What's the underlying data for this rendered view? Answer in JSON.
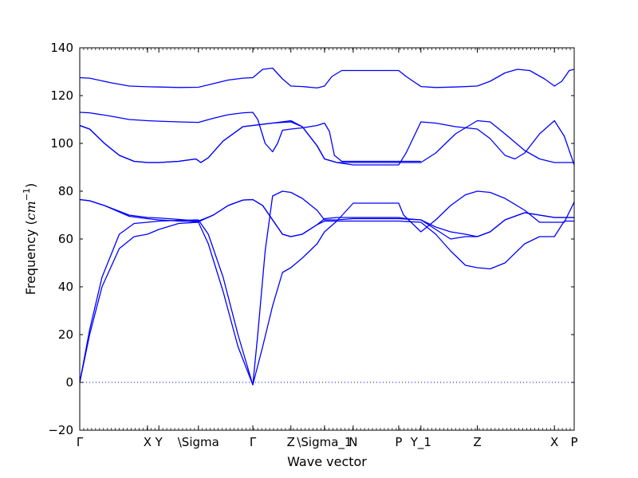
{
  "chart_data": {
    "type": "line",
    "xlabel": "Wave vector",
    "ylabel_text": "Frequency (",
    "ylabel_math_base": "cm",
    "ylabel_math_exp": "−1",
    "ylabel_close": ")",
    "ylim": [
      -20,
      140
    ],
    "yticks": [
      -20,
      0,
      20,
      40,
      60,
      80,
      100,
      120,
      140
    ],
    "xlim": [
      0,
      1
    ],
    "xticks": [
      {
        "label": "Γ",
        "x": 0.0
      },
      {
        "label": "X",
        "x": 0.137
      },
      {
        "label": "Y",
        "x": 0.16
      },
      {
        "label": "\\Sigma",
        "x": 0.24
      },
      {
        "label": "Γ",
        "x": 0.35
      },
      {
        "label": "Z",
        "x": 0.427
      },
      {
        "label": "\\Sigma_1",
        "x": 0.495
      },
      {
        "label": "N",
        "x": 0.553
      },
      {
        "label": "P",
        "x": 0.645
      },
      {
        "label": "Y_1",
        "x": 0.69
      },
      {
        "label": "Z",
        "x": 0.804
      },
      {
        "label": "X",
        "x": 0.96
      },
      {
        "label": "P",
        "x": 1.0
      }
    ],
    "zero_line": {
      "y": 0,
      "style": "dotted"
    },
    "series_color": "#0000ff",
    "series": [
      {
        "points": [
          [
            0,
            0
          ],
          [
            0.02,
            20
          ],
          [
            0.045,
            40
          ],
          [
            0.08,
            56
          ],
          [
            0.11,
            61
          ],
          [
            0.137,
            62
          ],
          [
            0.16,
            64
          ],
          [
            0.2,
            66.5
          ],
          [
            0.24,
            67
          ],
          [
            0.26,
            58
          ],
          [
            0.29,
            38
          ],
          [
            0.32,
            15
          ],
          [
            0.35,
            -1
          ],
          [
            0.37,
            15
          ],
          [
            0.39,
            32
          ],
          [
            0.41,
            46
          ],
          [
            0.427,
            48
          ],
          [
            0.45,
            52
          ],
          [
            0.48,
            58
          ],
          [
            0.495,
            63
          ],
          [
            0.52,
            67.5
          ],
          [
            0.553,
            67.5
          ],
          [
            0.6,
            67.5
          ],
          [
            0.645,
            67.5
          ],
          [
            0.69,
            67
          ],
          [
            0.72,
            62
          ],
          [
            0.75,
            55
          ],
          [
            0.78,
            49
          ],
          [
            0.804,
            48
          ],
          [
            0.83,
            47.5
          ],
          [
            0.86,
            50
          ],
          [
            0.9,
            58
          ],
          [
            0.93,
            61
          ],
          [
            0.96,
            61
          ],
          [
            0.98,
            67.5
          ],
          [
            1,
            67.5
          ]
        ]
      },
      {
        "points": [
          [
            0,
            0
          ],
          [
            0.02,
            22
          ],
          [
            0.045,
            44
          ],
          [
            0.08,
            62
          ],
          [
            0.11,
            66.5
          ],
          [
            0.137,
            67
          ],
          [
            0.16,
            67.5
          ],
          [
            0.2,
            67.8
          ],
          [
            0.24,
            68
          ],
          [
            0.26,
            62
          ],
          [
            0.29,
            44
          ],
          [
            0.32,
            20
          ],
          [
            0.35,
            -1
          ],
          [
            0.36,
            20
          ],
          [
            0.375,
            55
          ],
          [
            0.39,
            78
          ],
          [
            0.41,
            80
          ],
          [
            0.427,
            79.5
          ],
          [
            0.45,
            77
          ],
          [
            0.48,
            72
          ],
          [
            0.495,
            68
          ],
          [
            0.52,
            68
          ],
          [
            0.553,
            68.5
          ],
          [
            0.6,
            68.5
          ],
          [
            0.645,
            68.5
          ],
          [
            0.69,
            68
          ],
          [
            0.72,
            64
          ],
          [
            0.75,
            60
          ],
          [
            0.78,
            61
          ],
          [
            0.804,
            61
          ],
          [
            0.83,
            63
          ],
          [
            0.86,
            68
          ],
          [
            0.9,
            71
          ],
          [
            0.93,
            70
          ],
          [
            0.96,
            69
          ],
          [
            0.98,
            69
          ],
          [
            1,
            69
          ]
        ]
      },
      {
        "points": [
          [
            0,
            76.5
          ],
          [
            0.02,
            76
          ],
          [
            0.05,
            74
          ],
          [
            0.1,
            70
          ],
          [
            0.137,
            69
          ],
          [
            0.16,
            68.8
          ],
          [
            0.2,
            68.2
          ],
          [
            0.24,
            67.5
          ],
          [
            0.27,
            70
          ],
          [
            0.3,
            74
          ],
          [
            0.33,
            76.3
          ],
          [
            0.35,
            76.5
          ],
          [
            0.37,
            74
          ],
          [
            0.39,
            68
          ],
          [
            0.41,
            62
          ],
          [
            0.427,
            61
          ],
          [
            0.45,
            62
          ],
          [
            0.48,
            66
          ],
          [
            0.495,
            68.5
          ],
          [
            0.52,
            69
          ],
          [
            0.553,
            69
          ],
          [
            0.6,
            69
          ],
          [
            0.645,
            69
          ],
          [
            0.66,
            68.5
          ],
          [
            0.69,
            68
          ],
          [
            0.72,
            65
          ],
          [
            0.75,
            63
          ],
          [
            0.78,
            62
          ],
          [
            0.804,
            61
          ],
          [
            0.83,
            63
          ],
          [
            0.86,
            68
          ],
          [
            0.9,
            71
          ],
          [
            0.93,
            70
          ],
          [
            0.96,
            69
          ],
          [
            1,
            69
          ]
        ]
      },
      {
        "points": [
          [
            0,
            76.5
          ],
          [
            0.02,
            76
          ],
          [
            0.05,
            74
          ],
          [
            0.1,
            69.5
          ],
          [
            0.137,
            68.5
          ],
          [
            0.16,
            68
          ],
          [
            0.2,
            67.5
          ],
          [
            0.24,
            67.2
          ],
          [
            0.27,
            70
          ],
          [
            0.3,
            74
          ],
          [
            0.33,
            76.3
          ],
          [
            0.35,
            76.5
          ],
          [
            0.37,
            74
          ],
          [
            0.39,
            68
          ],
          [
            0.41,
            62
          ],
          [
            0.427,
            61
          ],
          [
            0.45,
            62
          ],
          [
            0.48,
            66
          ],
          [
            0.495,
            67.5
          ],
          [
            0.52,
            67.5
          ],
          [
            0.553,
            75
          ],
          [
            0.6,
            75
          ],
          [
            0.645,
            75
          ],
          [
            0.655,
            70
          ],
          [
            0.69,
            63
          ],
          [
            0.72,
            68
          ],
          [
            0.75,
            74
          ],
          [
            0.78,
            78.5
          ],
          [
            0.804,
            80
          ],
          [
            0.83,
            79.5
          ],
          [
            0.86,
            77
          ],
          [
            0.9,
            72
          ],
          [
            0.93,
            67
          ],
          [
            0.96,
            67
          ],
          [
            0.98,
            67
          ],
          [
            1,
            75.5
          ]
        ]
      },
      {
        "points": [
          [
            0,
            107.5
          ],
          [
            0.02,
            106
          ],
          [
            0.05,
            100
          ],
          [
            0.08,
            95
          ],
          [
            0.11,
            92.5
          ],
          [
            0.137,
            92
          ],
          [
            0.16,
            92
          ],
          [
            0.2,
            92.5
          ],
          [
            0.235,
            93.5
          ],
          [
            0.245,
            92
          ],
          [
            0.26,
            94
          ],
          [
            0.29,
            101
          ],
          [
            0.33,
            107
          ],
          [
            0.35,
            107.5
          ],
          [
            0.39,
            108.5
          ],
          [
            0.427,
            109.5
          ],
          [
            0.45,
            107
          ],
          [
            0.48,
            99
          ],
          [
            0.495,
            93.5
          ],
          [
            0.52,
            92
          ],
          [
            0.553,
            92
          ],
          [
            0.6,
            92
          ],
          [
            0.645,
            92
          ],
          [
            0.69,
            92
          ],
          [
            0.72,
            96
          ],
          [
            0.76,
            104
          ],
          [
            0.804,
            109.5
          ],
          [
            0.83,
            109
          ],
          [
            0.86,
            104
          ],
          [
            0.9,
            97
          ],
          [
            0.93,
            93.5
          ],
          [
            0.96,
            92
          ],
          [
            1,
            92
          ]
        ]
      },
      {
        "points": [
          [
            0,
            107.5
          ],
          [
            0.02,
            106
          ],
          [
            0.05,
            100
          ],
          [
            0.08,
            95
          ],
          [
            0.11,
            92.5
          ],
          [
            0.137,
            92
          ],
          [
            0.16,
            92
          ],
          [
            0.2,
            92.5
          ],
          [
            0.235,
            93.5
          ],
          [
            0.245,
            92
          ],
          [
            0.26,
            94
          ],
          [
            0.29,
            101
          ],
          [
            0.33,
            107
          ],
          [
            0.35,
            107.5
          ],
          [
            0.39,
            108.5
          ],
          [
            0.427,
            109
          ],
          [
            0.45,
            107
          ],
          [
            0.48,
            99
          ],
          [
            0.495,
            93.5
          ],
          [
            0.52,
            92
          ],
          [
            0.553,
            91
          ],
          [
            0.6,
            91
          ],
          [
            0.645,
            91
          ],
          [
            0.66,
            96
          ],
          [
            0.69,
            109
          ],
          [
            0.72,
            108.5
          ],
          [
            0.76,
            107
          ],
          [
            0.804,
            106
          ],
          [
            0.83,
            102
          ],
          [
            0.86,
            95
          ],
          [
            0.88,
            93.5
          ],
          [
            0.9,
            96
          ],
          [
            0.93,
            104
          ],
          [
            0.96,
            109.5
          ],
          [
            0.98,
            103
          ],
          [
            1,
            91
          ]
        ]
      },
      {
        "points": [
          [
            0,
            113
          ],
          [
            0.02,
            112.8
          ],
          [
            0.06,
            111.5
          ],
          [
            0.1,
            110
          ],
          [
            0.137,
            109.5
          ],
          [
            0.16,
            109.3
          ],
          [
            0.2,
            109
          ],
          [
            0.24,
            108.8
          ],
          [
            0.27,
            110.5
          ],
          [
            0.3,
            112
          ],
          [
            0.33,
            112.8
          ],
          [
            0.35,
            113
          ],
          [
            0.36,
            110
          ],
          [
            0.375,
            100
          ],
          [
            0.39,
            96.5
          ],
          [
            0.4,
            100
          ],
          [
            0.41,
            105.5
          ],
          [
            0.427,
            106
          ],
          [
            0.45,
            106.5
          ],
          [
            0.48,
            107.5
          ],
          [
            0.495,
            108.5
          ],
          [
            0.505,
            105
          ],
          [
            0.515,
            95
          ],
          [
            0.53,
            92.5
          ],
          [
            0.553,
            92.5
          ],
          [
            0.645,
            92.5
          ],
          [
            0.69,
            92.5
          ]
        ]
      },
      {
        "points": [
          [
            0,
            127.5
          ],
          [
            0.02,
            127.3
          ],
          [
            0.06,
            125.5
          ],
          [
            0.1,
            124
          ],
          [
            0.137,
            123.7
          ],
          [
            0.16,
            123.6
          ],
          [
            0.2,
            123.4
          ],
          [
            0.24,
            123.5
          ],
          [
            0.27,
            125
          ],
          [
            0.3,
            126.5
          ],
          [
            0.33,
            127.3
          ],
          [
            0.35,
            127.5
          ],
          [
            0.37,
            131
          ],
          [
            0.39,
            131.5
          ],
          [
            0.41,
            127
          ],
          [
            0.427,
            124
          ],
          [
            0.45,
            123.8
          ],
          [
            0.48,
            123.2
          ],
          [
            0.495,
            124
          ],
          [
            0.51,
            128
          ],
          [
            0.53,
            130.5
          ],
          [
            0.553,
            130.5
          ],
          [
            0.6,
            130.5
          ],
          [
            0.645,
            130.5
          ],
          [
            0.66,
            128
          ],
          [
            0.69,
            123.8
          ],
          [
            0.72,
            123.4
          ],
          [
            0.76,
            123.6
          ],
          [
            0.804,
            124
          ],
          [
            0.83,
            126
          ],
          [
            0.86,
            129.5
          ],
          [
            0.885,
            131
          ],
          [
            0.91,
            130.5
          ],
          [
            0.94,
            127
          ],
          [
            0.96,
            124
          ],
          [
            0.975,
            126
          ],
          [
            0.99,
            130.5
          ],
          [
            1,
            131
          ]
        ]
      }
    ]
  }
}
